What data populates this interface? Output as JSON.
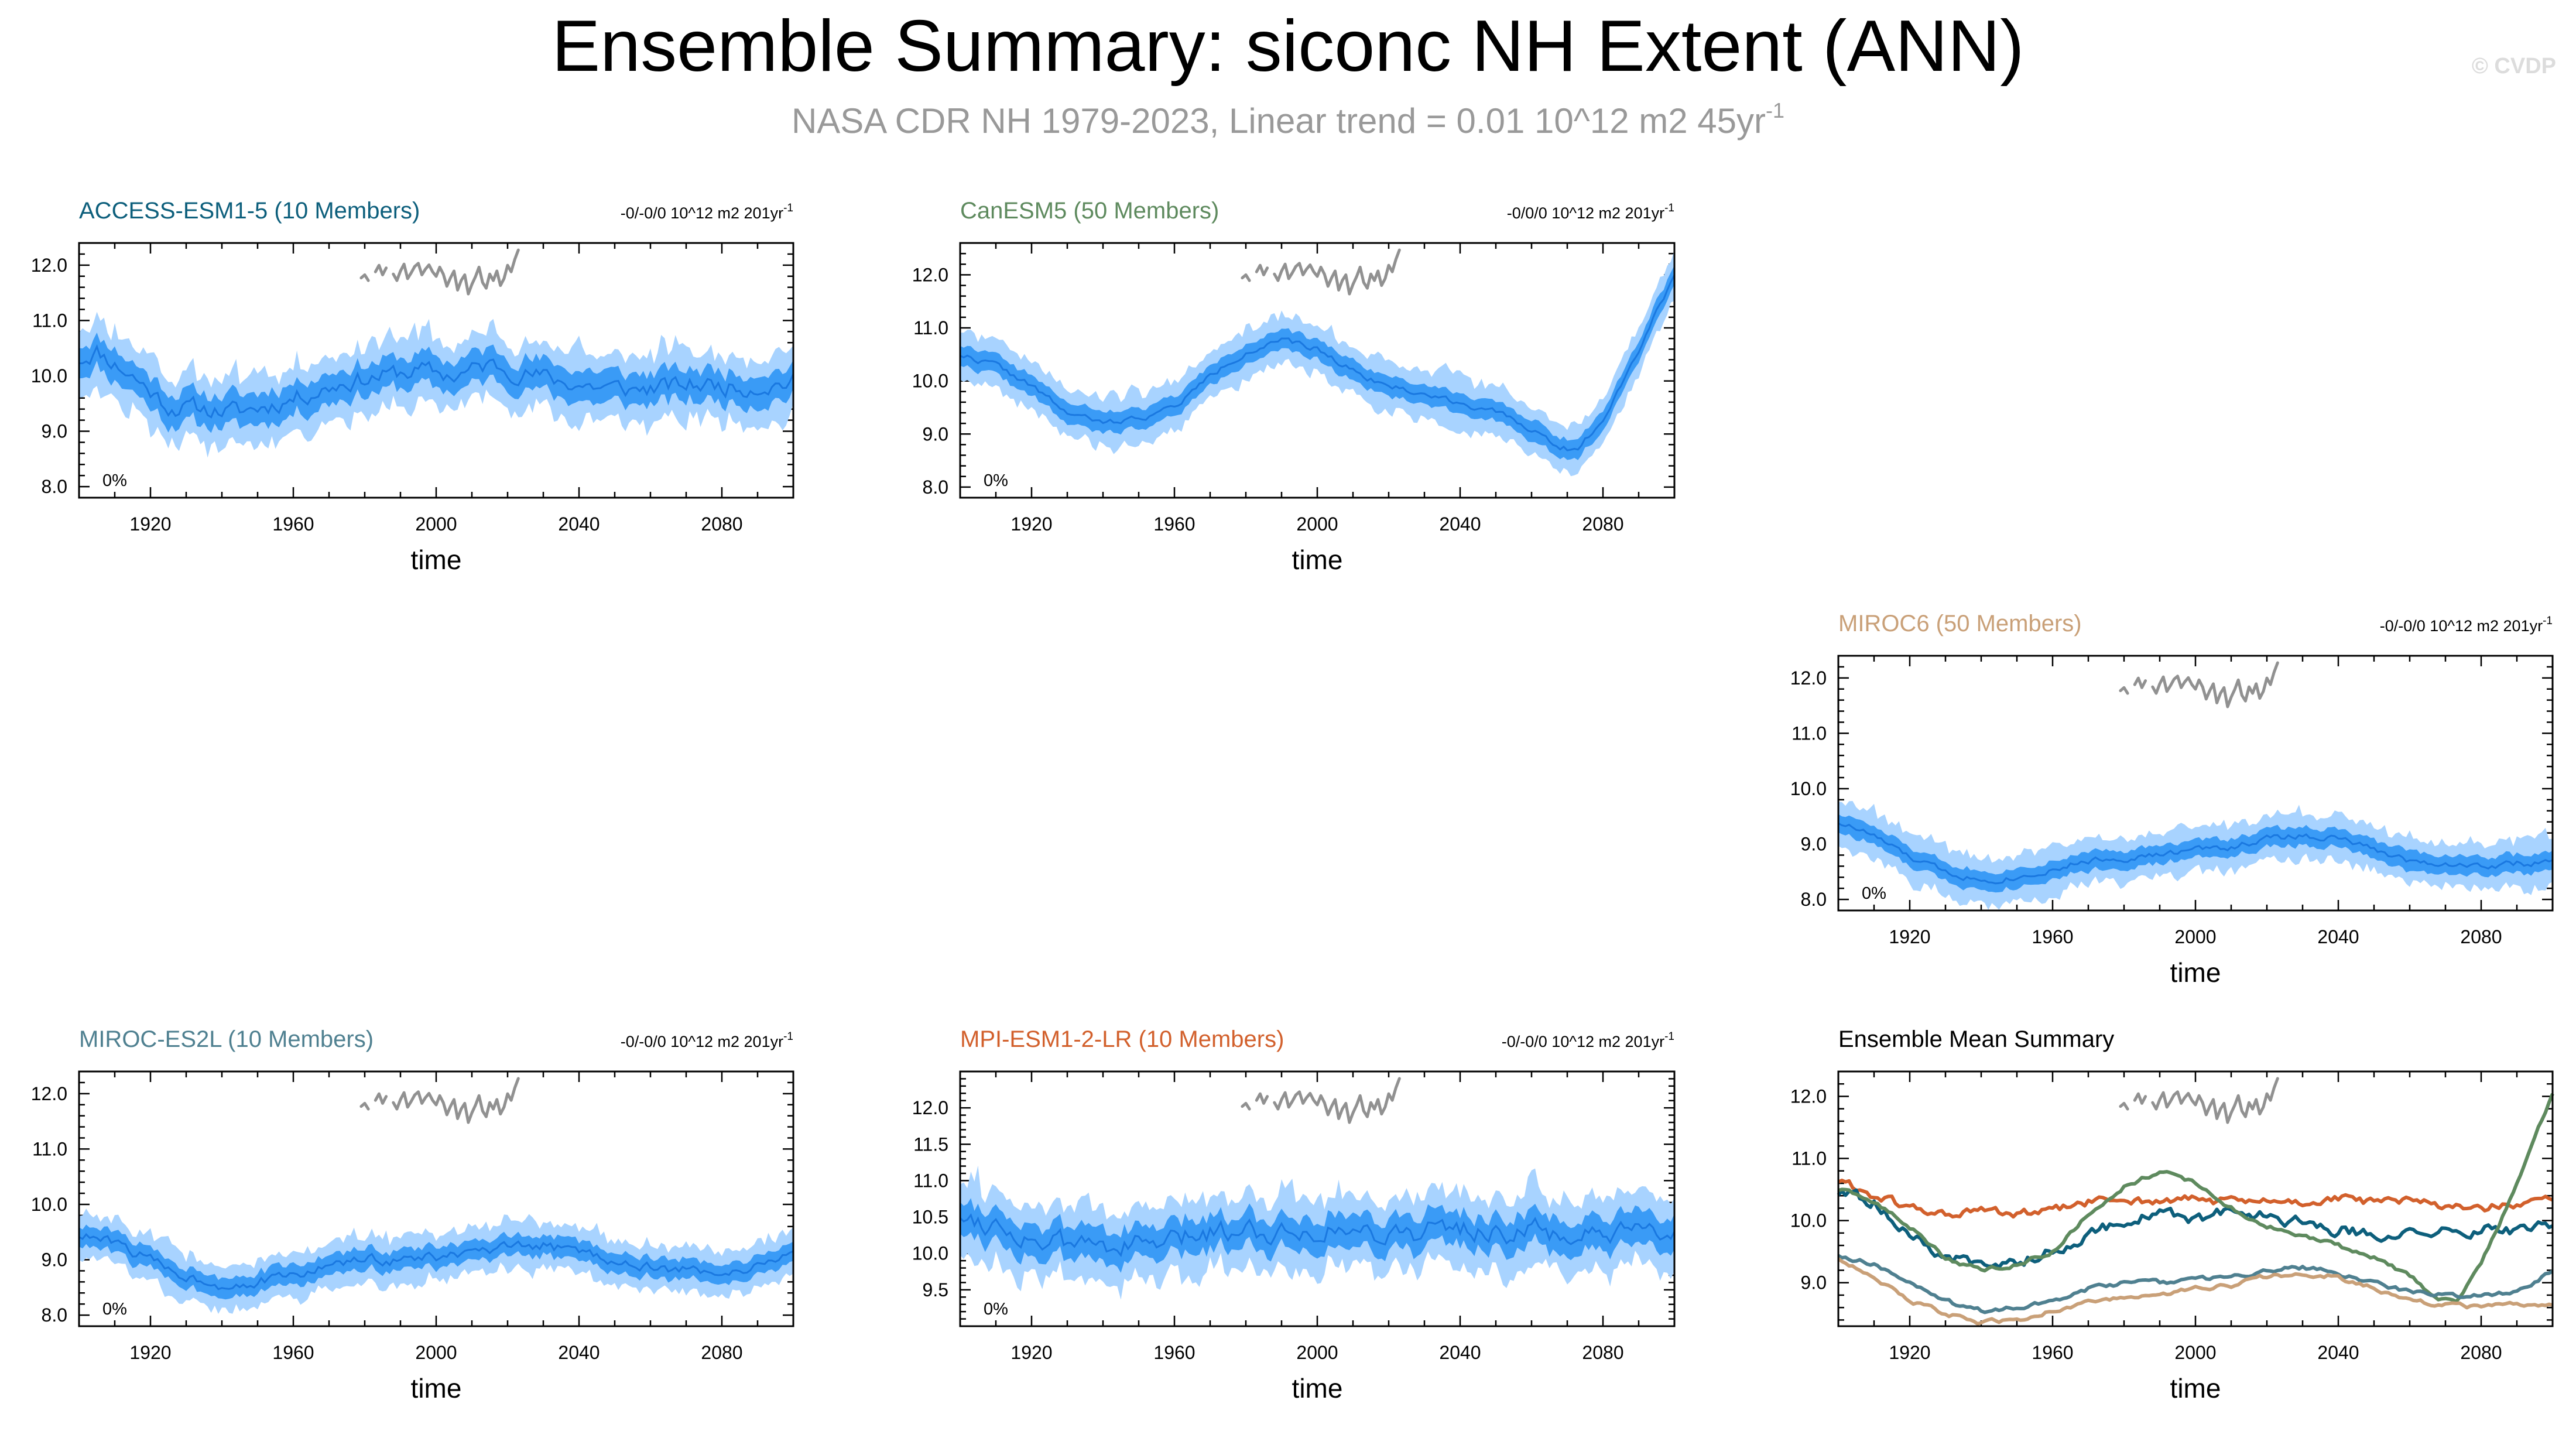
{
  "header": {
    "title": "Ensemble Summary: siconc NH Extent (ANN)",
    "subtitle_text": "NASA CDR NH 1979-2023, Linear trend = 0.01 10^12 m2 45yr",
    "subtitle_exponent": "-1",
    "copyright": "© CVDP"
  },
  "colors": {
    "band_outer": "#a8d3ff",
    "band_inner": "#3a9bf6",
    "ensemble_mean": "#1a78e0",
    "observations": "#919191",
    "frame": "#000000"
  },
  "chart_data": [
    {
      "id": "access",
      "type": "area",
      "title": "ACCESS-ESM1-5 (10 Members)",
      "title_color": "#0d5f7c",
      "trend_text": "-0/-0/0 10^12 m2 201yr",
      "trend_exponent": "-1",
      "percent_label": "0%",
      "xlabel": "time",
      "ylim": [
        7.8,
        12.4
      ],
      "yticks": [
        "8.0",
        "9.0",
        "10.0",
        "11.0",
        "12.0"
      ],
      "xlim": [
        1900,
        2100
      ],
      "xticks": [
        "1920",
        "1960",
        "2000",
        "2040",
        "2080"
      ],
      "mean_knots": [
        [
          1900,
          10.3
        ],
        [
          1905,
          10.45
        ],
        [
          1915,
          10.0
        ],
        [
          1925,
          9.45
        ],
        [
          1935,
          9.4
        ],
        [
          1945,
          9.35
        ],
        [
          1955,
          9.5
        ],
        [
          1965,
          9.7
        ],
        [
          1975,
          9.9
        ],
        [
          1985,
          10.0
        ],
        [
          1995,
          10.1
        ],
        [
          2005,
          10.0
        ],
        [
          2015,
          10.2
        ],
        [
          2025,
          10.05
        ],
        [
          2035,
          9.9
        ],
        [
          2045,
          9.8
        ],
        [
          2055,
          9.75
        ],
        [
          2065,
          9.8
        ],
        [
          2075,
          9.85
        ],
        [
          2085,
          9.8
        ],
        [
          2095,
          9.85
        ],
        [
          2100,
          9.9
        ]
      ],
      "spread_outer": 0.5,
      "spread_inner": 0.25,
      "noise": 0.14,
      "seed": 11
    },
    {
      "id": "canesm",
      "type": "area",
      "title": "CanESM5 (50 Members)",
      "title_color": "#5e8a5e",
      "trend_text": "-0/0/0 10^12 m2 201yr",
      "trend_exponent": "-1",
      "percent_label": "0%",
      "xlabel": "time",
      "ylim": [
        7.8,
        12.6
      ],
      "yticks": [
        "8.0",
        "9.0",
        "10.0",
        "11.0",
        "12.0"
      ],
      "xlim": [
        1900,
        2100
      ],
      "xticks": [
        "1920",
        "1960",
        "2000",
        "2040",
        "2080"
      ],
      "mean_knots": [
        [
          1900,
          10.5
        ],
        [
          1910,
          10.3
        ],
        [
          1920,
          9.9
        ],
        [
          1930,
          9.4
        ],
        [
          1940,
          9.2
        ],
        [
          1950,
          9.3
        ],
        [
          1960,
          9.5
        ],
        [
          1970,
          10.1
        ],
        [
          1980,
          10.55
        ],
        [
          1990,
          10.75
        ],
        [
          2000,
          10.6
        ],
        [
          2010,
          10.2
        ],
        [
          2020,
          9.9
        ],
        [
          2030,
          9.75
        ],
        [
          2040,
          9.6
        ],
        [
          2050,
          9.4
        ],
        [
          2060,
          9.1
        ],
        [
          2068,
          8.75
        ],
        [
          2073,
          8.7
        ],
        [
          2080,
          9.3
        ],
        [
          2090,
          10.6
        ],
        [
          2100,
          12.0
        ]
      ],
      "spread_outer": 0.38,
      "spread_inner": 0.17,
      "noise": 0.05,
      "seed": 22
    },
    {
      "id": "miroc6",
      "type": "area",
      "title": "MIROC6 (50 Members)",
      "title_color": "#c9a078",
      "trend_text": "-0/-0/0 10^12 m2 201yr",
      "trend_exponent": "-1",
      "percent_label": "0%",
      "xlabel": "time",
      "ylim": [
        7.8,
        12.4
      ],
      "yticks": [
        "8.0",
        "9.0",
        "10.0",
        "11.0",
        "12.0"
      ],
      "xlim": [
        1900,
        2100
      ],
      "xticks": [
        "1920",
        "1960",
        "2000",
        "2040",
        "2080"
      ],
      "mean_knots": [
        [
          1900,
          9.4
        ],
        [
          1910,
          9.15
        ],
        [
          1920,
          8.75
        ],
        [
          1930,
          8.5
        ],
        [
          1940,
          8.35
        ],
        [
          1950,
          8.4
        ],
        [
          1960,
          8.55
        ],
        [
          1970,
          8.7
        ],
        [
          1980,
          8.75
        ],
        [
          1990,
          8.8
        ],
        [
          2000,
          8.9
        ],
        [
          2010,
          8.95
        ],
        [
          2020,
          9.1
        ],
        [
          2030,
          9.15
        ],
        [
          2040,
          9.1
        ],
        [
          2050,
          8.9
        ],
        [
          2060,
          8.7
        ],
        [
          2070,
          8.65
        ],
        [
          2080,
          8.6
        ],
        [
          2090,
          8.65
        ],
        [
          2100,
          8.65
        ]
      ],
      "spread_outer": 0.34,
      "spread_inner": 0.15,
      "noise": 0.05,
      "seed": 33
    },
    {
      "id": "mirocesl",
      "type": "area",
      "title": "MIROC-ES2L (10 Members)",
      "title_color": "#4f8090",
      "trend_text": "-0/-0/0 10^12 m2 201yr",
      "trend_exponent": "-1",
      "percent_label": "0%",
      "xlabel": "time",
      "ylim": [
        7.8,
        12.4
      ],
      "yticks": [
        "8.0",
        "9.0",
        "10.0",
        "11.0",
        "12.0"
      ],
      "xlim": [
        1900,
        2100
      ],
      "xticks": [
        "1920",
        "1960",
        "2000",
        "2040",
        "2080"
      ],
      "mean_knots": [
        [
          1900,
          9.45
        ],
        [
          1910,
          9.3
        ],
        [
          1920,
          9.0
        ],
        [
          1930,
          8.7
        ],
        [
          1940,
          8.55
        ],
        [
          1950,
          8.6
        ],
        [
          1960,
          8.7
        ],
        [
          1970,
          8.9
        ],
        [
          1980,
          9.0
        ],
        [
          1990,
          9.0
        ],
        [
          2000,
          9.05
        ],
        [
          2010,
          9.1
        ],
        [
          2020,
          9.2
        ],
        [
          2030,
          9.25
        ],
        [
          2040,
          9.15
        ],
        [
          2050,
          9.0
        ],
        [
          2060,
          8.85
        ],
        [
          2070,
          8.8
        ],
        [
          2080,
          8.8
        ],
        [
          2090,
          8.85
        ],
        [
          2100,
          9.2
        ]
      ],
      "spread_outer": 0.34,
      "spread_inner": 0.16,
      "noise": 0.08,
      "seed": 44
    },
    {
      "id": "mpi",
      "type": "area",
      "title": "MPI-ESM1-2-LR (10 Members)",
      "title_color": "#d2602c",
      "trend_text": "-0/-0/0 10^12 m2 201yr",
      "trend_exponent": "-1",
      "percent_label": "0%",
      "xlabel": "time",
      "ylim": [
        9.0,
        12.5
      ],
      "yticks": [
        "9.5",
        "10.0",
        "10.5",
        "11.0",
        "11.5",
        "12.0"
      ],
      "xlim": [
        1900,
        2100
      ],
      "xticks": [
        "1920",
        "1960",
        "2000",
        "2040",
        "2080"
      ],
      "mean_knots": [
        [
          1900,
          10.55
        ],
        [
          1910,
          10.4
        ],
        [
          1920,
          10.2
        ],
        [
          1930,
          10.1
        ],
        [
          1940,
          10.15
        ],
        [
          1950,
          10.1
        ],
        [
          1960,
          10.15
        ],
        [
          1970,
          10.3
        ],
        [
          1980,
          10.35
        ],
        [
          1990,
          10.3
        ],
        [
          2000,
          10.35
        ],
        [
          2010,
          10.3
        ],
        [
          2020,
          10.3
        ],
        [
          2030,
          10.3
        ],
        [
          2040,
          10.35
        ],
        [
          2050,
          10.3
        ],
        [
          2060,
          10.3
        ],
        [
          2070,
          10.25
        ],
        [
          2080,
          10.2
        ],
        [
          2090,
          10.25
        ],
        [
          2100,
          10.25
        ]
      ],
      "spread_outer": 0.42,
      "spread_inner": 0.2,
      "noise": 0.13,
      "seed": 55
    },
    {
      "id": "summary",
      "type": "line",
      "title": "Ensemble Mean Summary",
      "title_color": "#000000",
      "xlabel": "time",
      "ylim": [
        8.3,
        12.4
      ],
      "yticks": [
        "9.0",
        "10.0",
        "11.0",
        "12.0"
      ],
      "xlim": [
        1900,
        2100
      ],
      "xticks": [
        "1920",
        "1960",
        "2000",
        "2040",
        "2080"
      ],
      "series": [
        {
          "name": "MPI-ESM1-2-LR",
          "color": "#d2602c",
          "noise": 0.06,
          "seed": 61,
          "knots": [
            [
              1900,
              10.65
            ],
            [
              1910,
              10.4
            ],
            [
              1920,
              10.2
            ],
            [
              1930,
              10.1
            ],
            [
              1940,
              10.15
            ],
            [
              1950,
              10.1
            ],
            [
              1960,
              10.15
            ],
            [
              1970,
              10.3
            ],
            [
              1980,
              10.35
            ],
            [
              1990,
              10.3
            ],
            [
              2000,
              10.35
            ],
            [
              2010,
              10.3
            ],
            [
              2020,
              10.3
            ],
            [
              2030,
              10.3
            ],
            [
              2040,
              10.35
            ],
            [
              2050,
              10.3
            ],
            [
              2060,
              10.3
            ],
            [
              2070,
              10.25
            ],
            [
              2080,
              10.2
            ],
            [
              2090,
              10.25
            ],
            [
              2100,
              10.3
            ]
          ]
        },
        {
          "name": "ACCESS-ESM1-5",
          "color": "#0d5f7c",
          "noise": 0.08,
          "seed": 62,
          "knots": [
            [
              1900,
              10.45
            ],
            [
              1910,
              10.3
            ],
            [
              1920,
              9.75
            ],
            [
              1930,
              9.4
            ],
            [
              1940,
              9.3
            ],
            [
              1950,
              9.35
            ],
            [
              1960,
              9.5
            ],
            [
              1970,
              9.8
            ],
            [
              1980,
              10.0
            ],
            [
              1990,
              10.1
            ],
            [
              2000,
              10.0
            ],
            [
              2010,
              10.15
            ],
            [
              2020,
              10.1
            ],
            [
              2030,
              9.95
            ],
            [
              2040,
              9.85
            ],
            [
              2050,
              9.8
            ],
            [
              2060,
              9.75
            ],
            [
              2070,
              9.8
            ],
            [
              2080,
              9.85
            ],
            [
              2090,
              9.85
            ],
            [
              2100,
              9.95
            ]
          ]
        },
        {
          "name": "CanESM5",
          "color": "#5e8a5e",
          "noise": 0.03,
          "seed": 63,
          "knots": [
            [
              1900,
              10.5
            ],
            [
              1910,
              10.3
            ],
            [
              1920,
              9.9
            ],
            [
              1930,
              9.4
            ],
            [
              1940,
              9.2
            ],
            [
              1950,
              9.3
            ],
            [
              1960,
              9.5
            ],
            [
              1970,
              10.1
            ],
            [
              1980,
              10.55
            ],
            [
              1990,
              10.8
            ],
            [
              2000,
              10.6
            ],
            [
              2010,
              10.2
            ],
            [
              2020,
              9.9
            ],
            [
              2030,
              9.75
            ],
            [
              2040,
              9.6
            ],
            [
              2050,
              9.4
            ],
            [
              2060,
              9.1
            ],
            [
              2068,
              8.75
            ],
            [
              2073,
              8.7
            ],
            [
              2080,
              9.3
            ],
            [
              2090,
              10.6
            ],
            [
              2100,
              12.05
            ]
          ]
        },
        {
          "name": "MIROC-ES2L",
          "color": "#4f8090",
          "noise": 0.03,
          "seed": 64,
          "knots": [
            [
              1900,
              9.45
            ],
            [
              1910,
              9.3
            ],
            [
              1920,
              9.0
            ],
            [
              1930,
              8.7
            ],
            [
              1940,
              8.55
            ],
            [
              1950,
              8.6
            ],
            [
              1960,
              8.7
            ],
            [
              1970,
              8.9
            ],
            [
              1980,
              9.0
            ],
            [
              1990,
              9.0
            ],
            [
              2000,
              9.05
            ],
            [
              2010,
              9.1
            ],
            [
              2020,
              9.2
            ],
            [
              2030,
              9.25
            ],
            [
              2040,
              9.15
            ],
            [
              2050,
              9.0
            ],
            [
              2060,
              8.85
            ],
            [
              2070,
              8.8
            ],
            [
              2080,
              8.8
            ],
            [
              2090,
              8.85
            ],
            [
              2100,
              9.2
            ]
          ]
        },
        {
          "name": "MIROC6",
          "color": "#c9a078",
          "noise": 0.03,
          "seed": 65,
          "knots": [
            [
              1900,
              9.4
            ],
            [
              1910,
              9.1
            ],
            [
              1920,
              8.7
            ],
            [
              1930,
              8.5
            ],
            [
              1940,
              8.35
            ],
            [
              1950,
              8.4
            ],
            [
              1960,
              8.55
            ],
            [
              1970,
              8.7
            ],
            [
              1980,
              8.75
            ],
            [
              1990,
              8.8
            ],
            [
              2000,
              8.9
            ],
            [
              2010,
              8.95
            ],
            [
              2020,
              9.1
            ],
            [
              2030,
              9.15
            ],
            [
              2040,
              9.1
            ],
            [
              2050,
              8.9
            ],
            [
              2060,
              8.7
            ],
            [
              2070,
              8.65
            ],
            [
              2080,
              8.6
            ],
            [
              2090,
              8.65
            ],
            [
              2100,
              8.65
            ]
          ]
        }
      ]
    }
  ]
}
